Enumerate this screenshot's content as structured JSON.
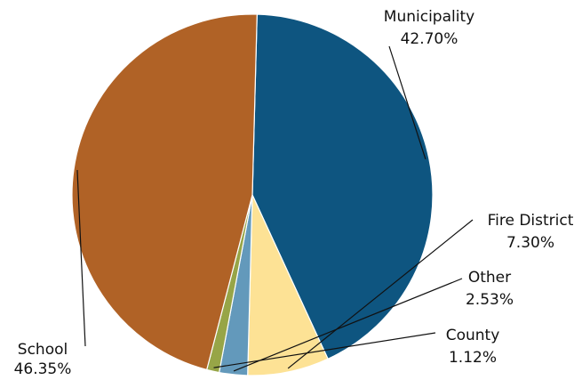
{
  "chart_data": {
    "type": "pie",
    "slices": [
      {
        "label": "Municipality",
        "value": 42.7,
        "value_label": "42.70%",
        "color": "#0e5580"
      },
      {
        "label": "Fire District",
        "value": 7.3,
        "value_label": "7.30%",
        "color": "#fde295"
      },
      {
        "label": "Other",
        "value": 2.53,
        "value_label": "2.53%",
        "color": "#6399bb"
      },
      {
        "label": "County",
        "value": 1.12,
        "value_label": "1.12%",
        "color": "#97a547"
      },
      {
        "label": "School",
        "value": 46.35,
        "value_label": "46.35%",
        "color": "#b06226"
      }
    ],
    "start_angle_deg": 271.5,
    "direction": "clockwise",
    "slice_edge_color": "#ffffff"
  }
}
